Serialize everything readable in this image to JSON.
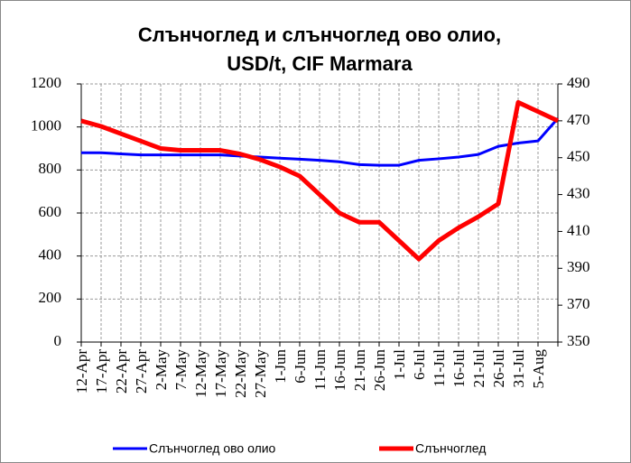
{
  "chart_data": {
    "type": "line",
    "title": [
      "Слънчоглед и слънчоглед ово олио,",
      "USD/t, CIF Marmara"
    ],
    "categories": [
      "12-Apr",
      "17-Apr",
      "22-Apr",
      "27-Apr",
      "2-May",
      "7-May",
      "12-May",
      "17-May",
      "22-May",
      "27-May",
      "1-Jun",
      "6-Jun",
      "11-Jun",
      "16-Jun",
      "21-Jun",
      "26-Jun",
      "1-Jul",
      "6-Jul",
      "11-Jul",
      "16-Jul",
      "21-Jul",
      "26-Jul",
      "31-Jul",
      "5-Aug",
      null
    ],
    "series": [
      {
        "name": "Слънчоглед ово олио",
        "color": "#0000ff",
        "axis": "y",
        "values": [
          880,
          880,
          875,
          870,
          870,
          870,
          870,
          870,
          865,
          860,
          855,
          850,
          845,
          838,
          825,
          822,
          822,
          845,
          852,
          860,
          872,
          910,
          925,
          935,
          1040
        ]
      },
      {
        "name": "Слънчоглед",
        "color": "#ff0000",
        "axis": "y2",
        "values": [
          470,
          467,
          463,
          459,
          455,
          454,
          454,
          454,
          452,
          449,
          445,
          440,
          430,
          420,
          415,
          415,
          405,
          395,
          405,
          412,
          418,
          425,
          480,
          475,
          470
        ]
      }
    ],
    "ylim": [
      0,
      1200
    ],
    "yticks": [
      0,
      200,
      400,
      600,
      800,
      1000,
      1200
    ],
    "y2lim": [
      350,
      490
    ],
    "y2ticks": [
      350,
      370,
      390,
      410,
      430,
      450,
      470,
      490
    ],
    "grid": true,
    "legend": "bottom"
  }
}
